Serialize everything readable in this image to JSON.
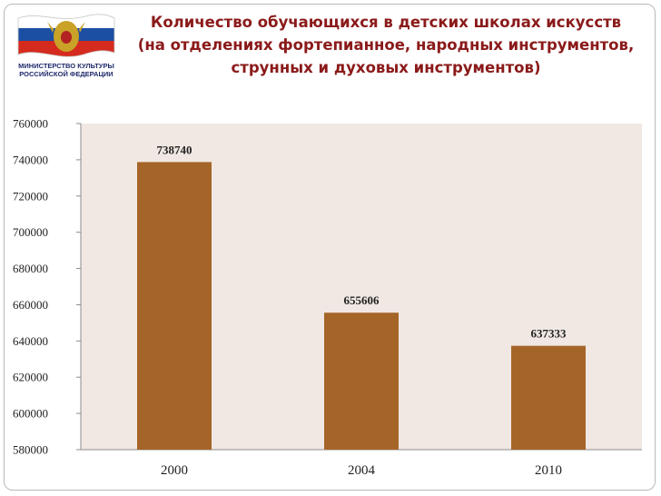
{
  "header": {
    "title_lines": [
      "Количество обучающихся в детских школах искусств",
      "(на отделениях фортепианное, народных инструментов,",
      "струнных и духовых инструментов)"
    ]
  },
  "logo": {
    "caption_lines": [
      "МИНИСТЕРСТВО КУЛЬТУРЫ",
      "РОССИЙСКОЙ ФЕДЕРАЦИИ"
    ],
    "flag_colors": [
      "#ffffff",
      "#1c4fa3",
      "#d52b1e"
    ],
    "emblem_color": "#c9a227"
  },
  "chart_data": {
    "type": "bar",
    "title": "Количество обучающихся в детских школах искусств (на отделениях фортепианное, народных инструментов, струнных и духовых инструментов)",
    "categories": [
      "2000",
      "2004",
      "2010"
    ],
    "values": [
      738740,
      655606,
      637333
    ],
    "ylim": [
      580000,
      760000
    ],
    "yticks": [
      580000,
      600000,
      620000,
      640000,
      660000,
      680000,
      700000,
      720000,
      740000,
      760000
    ],
    "grid": false,
    "legend": "none",
    "data_labels": true,
    "bar_color": "#a56528",
    "plot_background": "#f1e8e3"
  }
}
